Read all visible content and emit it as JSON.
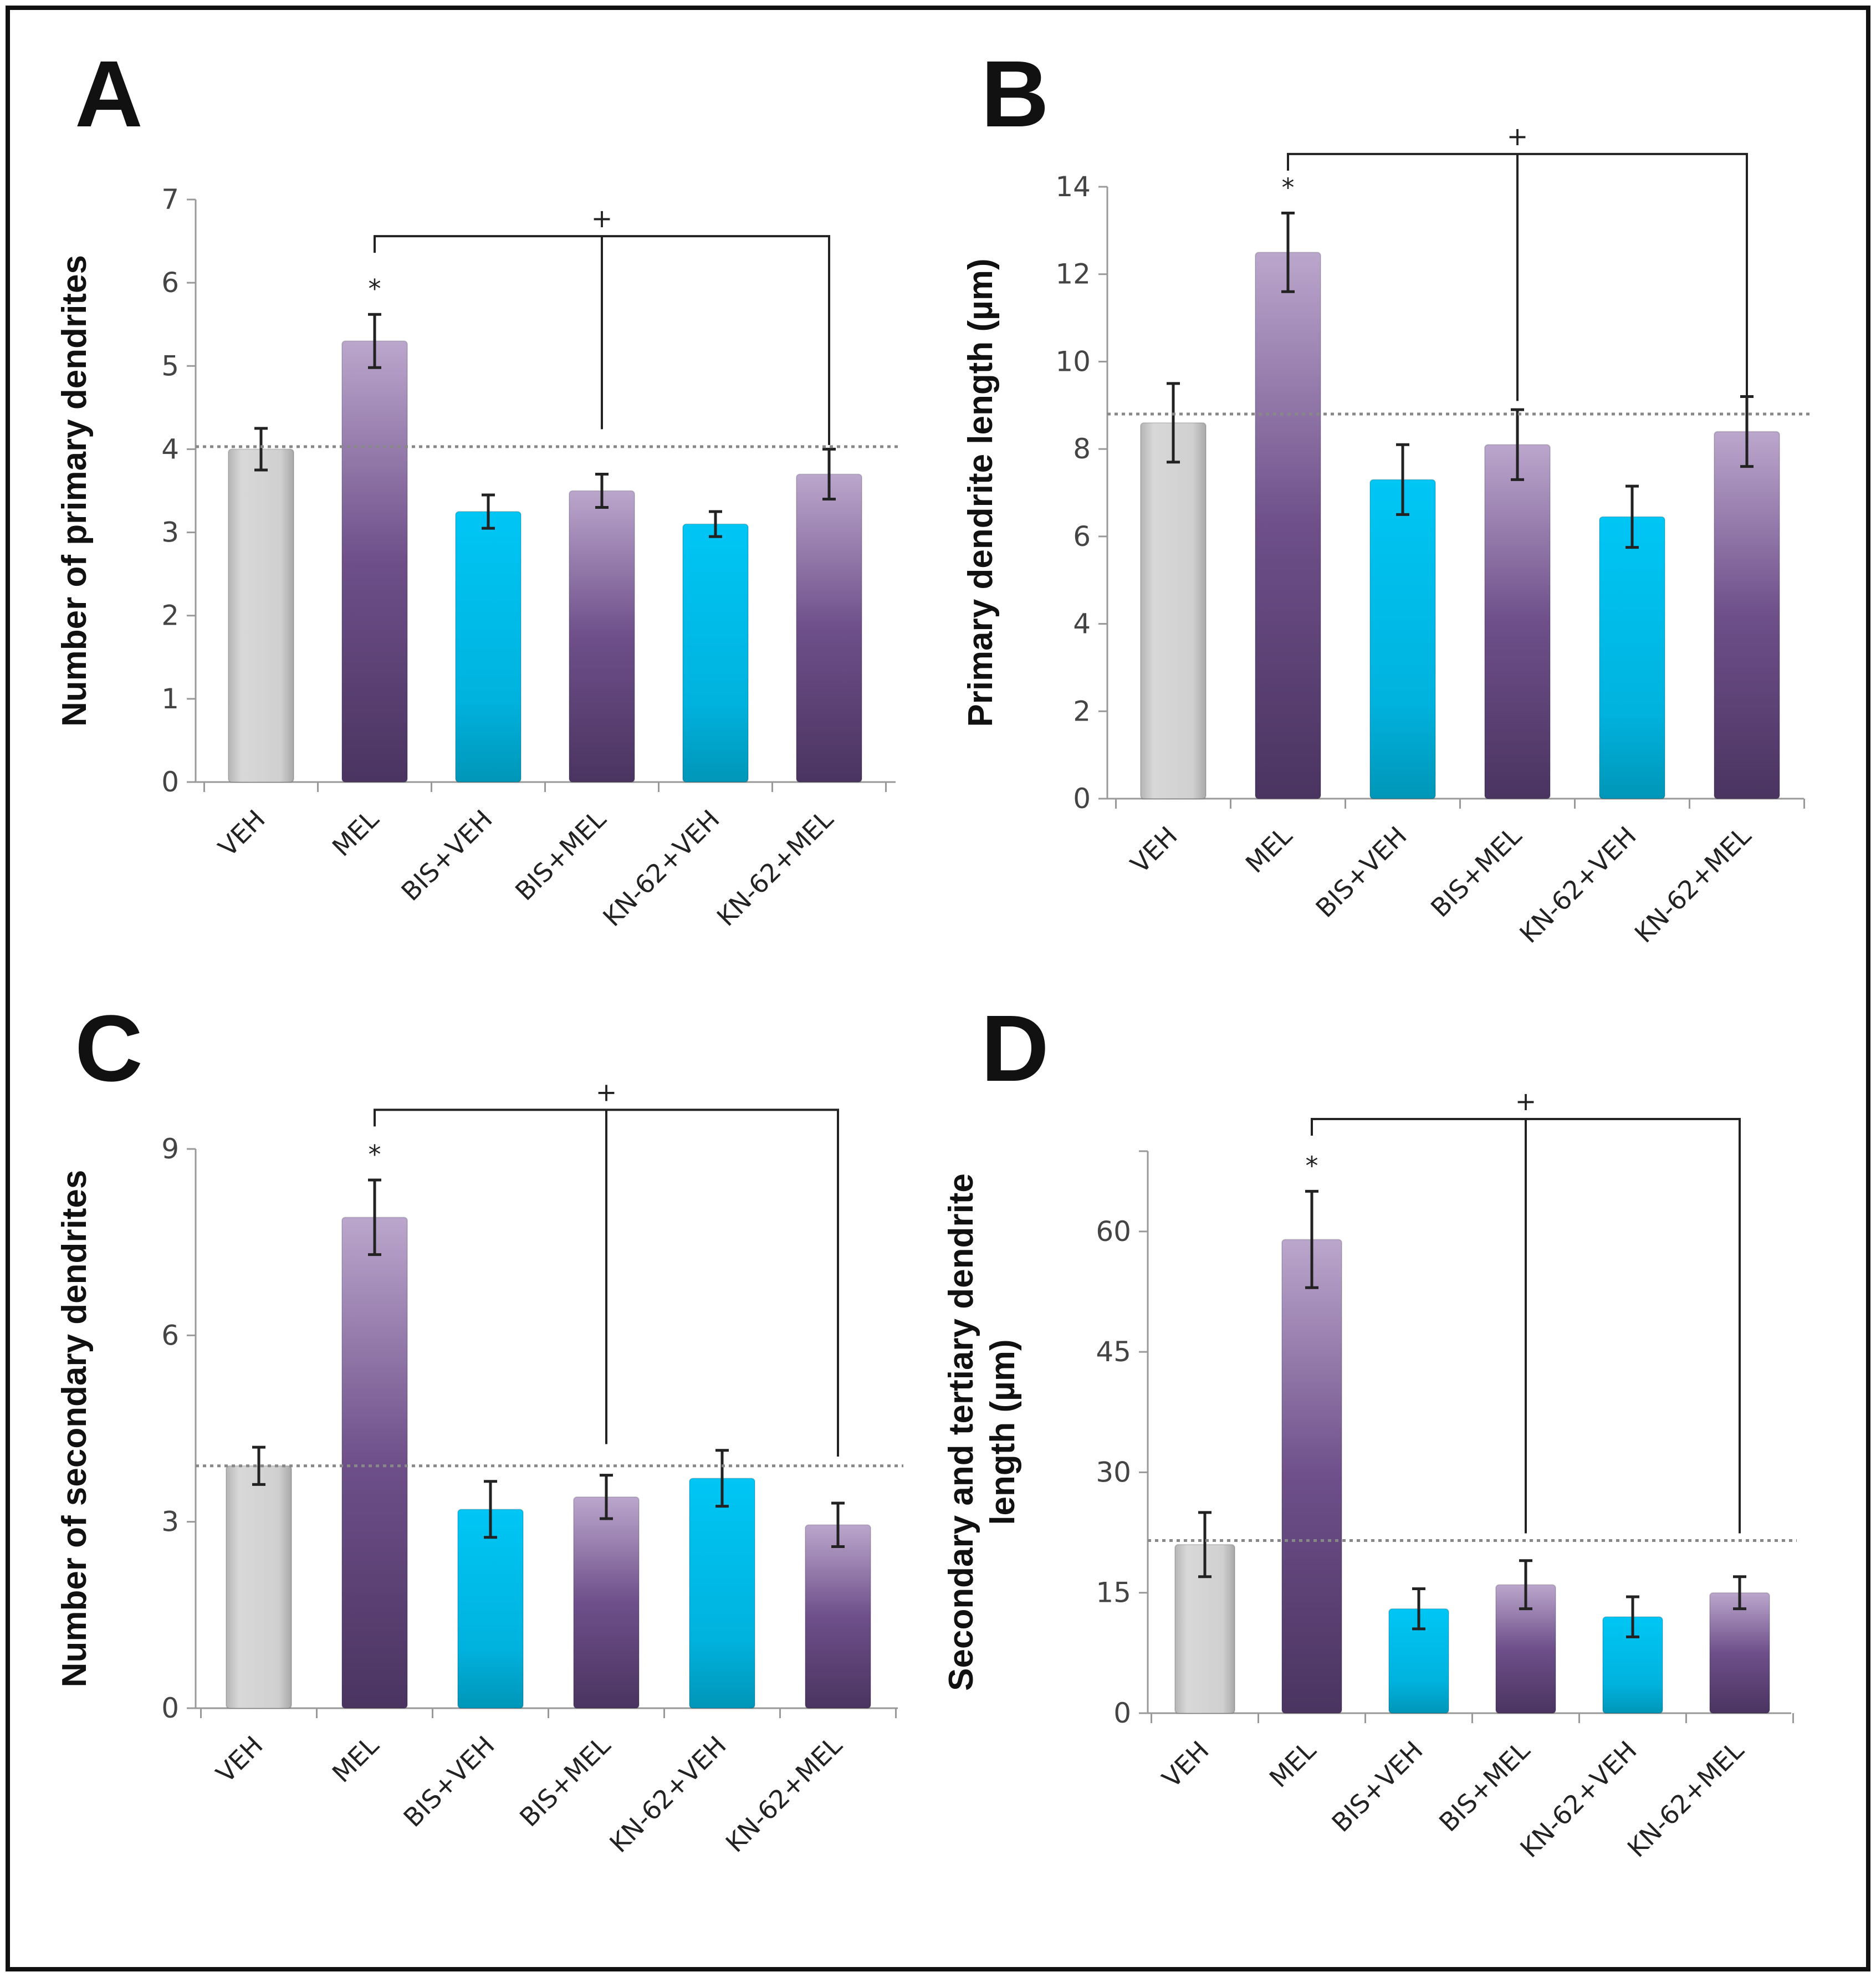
{
  "colors": {
    "control": "#cfcfcf",
    "mel_top": "#bba6cc",
    "mel_bottom": "#4a3460",
    "inhib_top": "#00c6f5",
    "inhib_bottom": "#0096b8",
    "frame": "#111111",
    "reference_line": "#888888"
  },
  "chart_data": [
    {
      "type": "bar",
      "panel": "A",
      "ylabel": "Number of primary dendrites",
      "categories": [
        "VEH",
        "MEL",
        "BIS+VEH",
        "BIS+MEL",
        "KN-62+VEH",
        "KN-62+MEL"
      ],
      "values": [
        4.0,
        5.3,
        3.25,
        3.5,
        3.1,
        3.7
      ],
      "errors": [
        0.25,
        0.32,
        0.2,
        0.2,
        0.15,
        0.3
      ],
      "groups": [
        "control",
        "mel",
        "inhib",
        "mel",
        "inhib",
        "mel"
      ],
      "ylim": [
        0,
        7
      ],
      "yticks": [
        0,
        1,
        2,
        3,
        4,
        5,
        6,
        7
      ],
      "reference_line": 4.03,
      "significance": {
        "star_label": "*",
        "star_on": "MEL",
        "bracket_label": "+",
        "bracket_level": 6.56,
        "bracket_to": [
          "BIS+MEL",
          "KN-62+MEL"
        ],
        "drop_to": [
          4.24,
          4.05
        ]
      }
    },
    {
      "type": "bar",
      "panel": "B",
      "ylabel": "Primary dendrite length (µm)",
      "categories": [
        "VEH",
        "MEL",
        "BIS+VEH",
        "BIS+MEL",
        "KN-62+VEH",
        "KN-62+MEL"
      ],
      "values": [
        8.6,
        12.5,
        7.3,
        8.1,
        6.45,
        8.4
      ],
      "errors": [
        0.9,
        0.9,
        0.8,
        0.8,
        0.7,
        0.8
      ],
      "groups": [
        "control",
        "mel",
        "inhib",
        "mel",
        "inhib",
        "mel"
      ],
      "ylim": [
        0,
        14
      ],
      "yticks": [
        0,
        2,
        4,
        6,
        8,
        10,
        12,
        14
      ],
      "reference_line": 8.8,
      "significance": {
        "star_label": "*",
        "star_on": "MEL",
        "bracket_label": "+",
        "bracket_level": 14.75,
        "bracket_to": [
          "BIS+MEL",
          "KN-62+MEL"
        ],
        "drop_to": [
          9.1,
          9.1
        ]
      }
    },
    {
      "type": "bar",
      "panel": "C",
      "ylabel": "Number of secondary dendrites",
      "categories": [
        "VEH",
        "MEL",
        "BIS+VEH",
        "BIS+MEL",
        "KN-62+VEH",
        "KN-62+MEL"
      ],
      "values": [
        3.9,
        7.9,
        3.2,
        3.4,
        3.7,
        2.95
      ],
      "errors": [
        0.3,
        0.6,
        0.45,
        0.35,
        0.45,
        0.35
      ],
      "groups": [
        "control",
        "mel",
        "inhib",
        "mel",
        "inhib",
        "mel"
      ],
      "ylim": [
        0,
        9
      ],
      "yticks": [
        0,
        3,
        6,
        9
      ],
      "reference_line": 3.9,
      "significance": {
        "star_label": "*",
        "star_on": "MEL",
        "bracket_label": "+",
        "bracket_level": 9.63,
        "bracket_to": [
          "BIS+MEL",
          "KN-62+MEL"
        ],
        "drop_to": [
          4.25,
          4.05
        ]
      }
    },
    {
      "type": "bar",
      "panel": "D",
      "ylabel": "Secondary and tertiary dendrite",
      "ylabel2": "length (µm)",
      "categories": [
        "VEH",
        "MEL",
        "BIS+VEH",
        "BIS+MEL",
        "KN-62+VEH",
        "KN-62+MEL"
      ],
      "values": [
        21,
        59,
        13,
        16,
        12,
        15
      ],
      "errors": [
        4,
        6,
        2.5,
        3,
        2.5,
        2
      ],
      "groups": [
        "control",
        "mel",
        "inhib",
        "mel",
        "inhib",
        "mel"
      ],
      "ylim": [
        0,
        70
      ],
      "yticks": [
        0,
        15,
        30,
        45,
        60
      ],
      "reference_line": 21.5,
      "significance": {
        "star_label": "*",
        "star_on": "MEL",
        "bracket_label": "+",
        "bracket_level": 74,
        "bracket_to": [
          "BIS+MEL",
          "KN-62+MEL"
        ],
        "drop_to": [
          22.4,
          22.4
        ]
      }
    }
  ]
}
